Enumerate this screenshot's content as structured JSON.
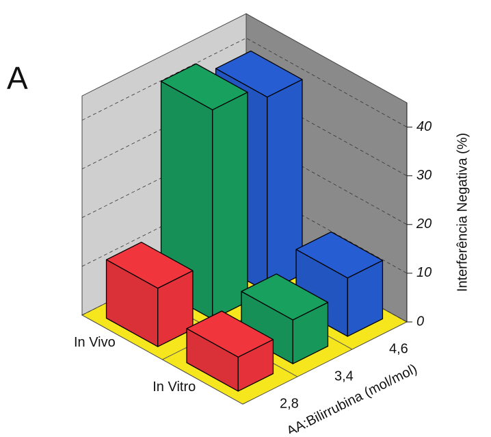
{
  "chart_data": {
    "type": "bar3d",
    "panel_label": "A",
    "categories": [
      "In Vivo",
      "In Vitro"
    ],
    "series": [
      {
        "name": "2,8",
        "color": "#e5323a",
        "values": [
          12,
          7
        ]
      },
      {
        "name": "3,4",
        "color": "#17985a",
        "values": [
          43,
          9
        ]
      },
      {
        "name": "4,6",
        "color": "#2459c9",
        "values": [
          40,
          12
        ]
      }
    ],
    "xlabel": "AA:Bilirrubina (mol/mol)",
    "ylabel": "Interferência Negativa (%)",
    "ylim": [
      0,
      45
    ],
    "yticks": [
      0,
      10,
      20,
      30,
      40
    ],
    "grid": true
  }
}
